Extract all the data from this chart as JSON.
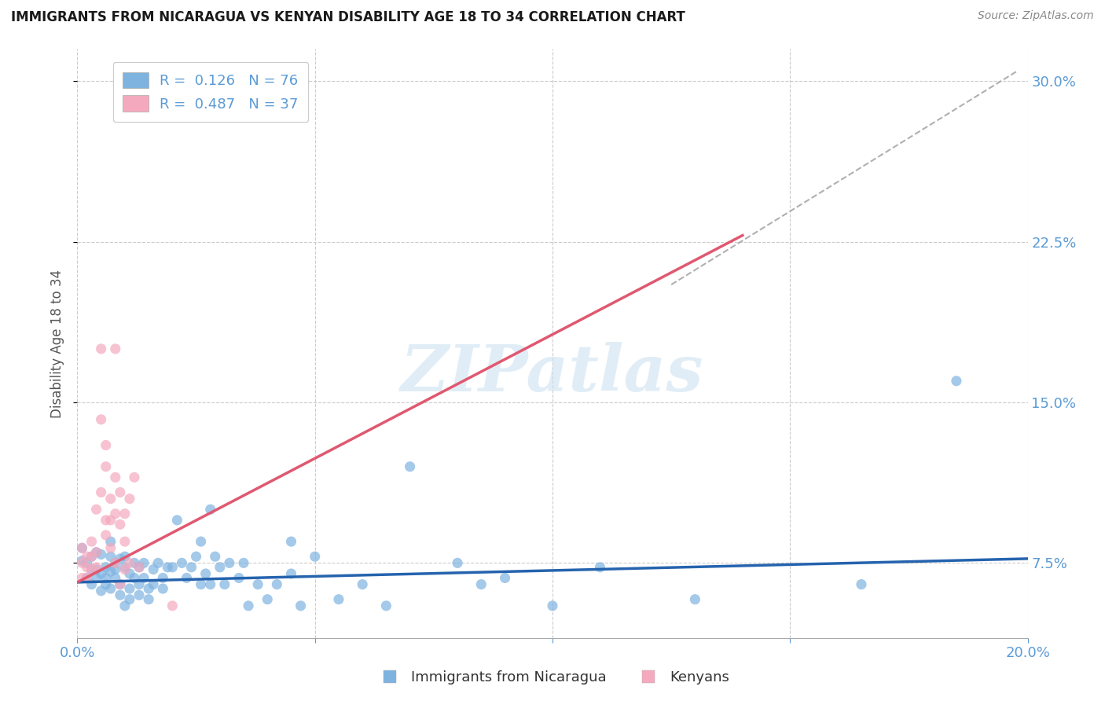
{
  "title": "IMMIGRANTS FROM NICARAGUA VS KENYAN DISABILITY AGE 18 TO 34 CORRELATION CHART",
  "source": "Source: ZipAtlas.com",
  "ylabel": "Disability Age 18 to 34",
  "xlim": [
    0.0,
    0.2
  ],
  "ylim": [
    0.04,
    0.315
  ],
  "yticks": [
    0.075,
    0.15,
    0.225,
    0.3
  ],
  "ytick_labels": [
    "7.5%",
    "15.0%",
    "22.5%",
    "30.0%"
  ],
  "xticks": [
    0.0,
    0.05,
    0.1,
    0.15,
    0.2
  ],
  "xtick_labels": [
    "0.0%",
    "",
    "",
    "",
    "20.0%"
  ],
  "color_blue": "#7eb3e0",
  "color_pink": "#f4a9be",
  "color_blue_line": "#2563ae",
  "color_pink_line": "#e05870",
  "color_dash": "#b0b0b0",
  "watermark_color": "#c8dff0",
  "bg_color": "#ffffff",
  "grid_color": "#cccccc",
  "title_color": "#1a1a1a",
  "axis_label_color": "#555555",
  "tick_color": "#5b9bd5",
  "legend_text_color": "#5b9bd5",
  "blue_scatter": [
    [
      0.001,
      0.082
    ],
    [
      0.001,
      0.076
    ],
    [
      0.002,
      0.075
    ],
    [
      0.002,
      0.068
    ],
    [
      0.003,
      0.078
    ],
    [
      0.003,
      0.065
    ],
    [
      0.003,
      0.072
    ],
    [
      0.004,
      0.072
    ],
    [
      0.004,
      0.08
    ],
    [
      0.004,
      0.068
    ],
    [
      0.005,
      0.07
    ],
    [
      0.005,
      0.079
    ],
    [
      0.005,
      0.062
    ],
    [
      0.006,
      0.065
    ],
    [
      0.006,
      0.073
    ],
    [
      0.006,
      0.068
    ],
    [
      0.007,
      0.078
    ],
    [
      0.007,
      0.063
    ],
    [
      0.007,
      0.085
    ],
    [
      0.007,
      0.071
    ],
    [
      0.008,
      0.075
    ],
    [
      0.008,
      0.068
    ],
    [
      0.008,
      0.072
    ],
    [
      0.009,
      0.06
    ],
    [
      0.009,
      0.077
    ],
    [
      0.009,
      0.065
    ],
    [
      0.01,
      0.073
    ],
    [
      0.01,
      0.078
    ],
    [
      0.01,
      0.055
    ],
    [
      0.011,
      0.07
    ],
    [
      0.011,
      0.063
    ],
    [
      0.011,
      0.058
    ],
    [
      0.012,
      0.075
    ],
    [
      0.012,
      0.068
    ],
    [
      0.013,
      0.073
    ],
    [
      0.013,
      0.065
    ],
    [
      0.013,
      0.06
    ],
    [
      0.014,
      0.075
    ],
    [
      0.014,
      0.068
    ],
    [
      0.015,
      0.063
    ],
    [
      0.015,
      0.058
    ],
    [
      0.016,
      0.072
    ],
    [
      0.016,
      0.065
    ],
    [
      0.017,
      0.075
    ],
    [
      0.018,
      0.068
    ],
    [
      0.018,
      0.063
    ],
    [
      0.019,
      0.073
    ],
    [
      0.02,
      0.073
    ],
    [
      0.021,
      0.095
    ],
    [
      0.022,
      0.075
    ],
    [
      0.023,
      0.068
    ],
    [
      0.024,
      0.073
    ],
    [
      0.025,
      0.078
    ],
    [
      0.026,
      0.065
    ],
    [
      0.026,
      0.085
    ],
    [
      0.027,
      0.07
    ],
    [
      0.028,
      0.065
    ],
    [
      0.028,
      0.1
    ],
    [
      0.029,
      0.078
    ],
    [
      0.03,
      0.073
    ],
    [
      0.031,
      0.065
    ],
    [
      0.032,
      0.075
    ],
    [
      0.034,
      0.068
    ],
    [
      0.035,
      0.075
    ],
    [
      0.036,
      0.055
    ],
    [
      0.038,
      0.065
    ],
    [
      0.04,
      0.058
    ],
    [
      0.042,
      0.065
    ],
    [
      0.045,
      0.07
    ],
    [
      0.045,
      0.085
    ],
    [
      0.047,
      0.055
    ],
    [
      0.05,
      0.078
    ],
    [
      0.055,
      0.058
    ],
    [
      0.06,
      0.065
    ],
    [
      0.065,
      0.055
    ],
    [
      0.07,
      0.12
    ],
    [
      0.08,
      0.075
    ],
    [
      0.085,
      0.065
    ],
    [
      0.09,
      0.068
    ],
    [
      0.1,
      0.055
    ],
    [
      0.11,
      0.073
    ],
    [
      0.13,
      0.058
    ],
    [
      0.165,
      0.065
    ],
    [
      0.185,
      0.16
    ]
  ],
  "pink_scatter": [
    [
      0.001,
      0.082
    ],
    [
      0.001,
      0.075
    ],
    [
      0.001,
      0.068
    ],
    [
      0.002,
      0.078
    ],
    [
      0.002,
      0.068
    ],
    [
      0.002,
      0.073
    ],
    [
      0.003,
      0.085
    ],
    [
      0.003,
      0.078
    ],
    [
      0.003,
      0.072
    ],
    [
      0.004,
      0.1
    ],
    [
      0.004,
      0.08
    ],
    [
      0.004,
      0.073
    ],
    [
      0.005,
      0.142
    ],
    [
      0.005,
      0.175
    ],
    [
      0.005,
      0.108
    ],
    [
      0.006,
      0.12
    ],
    [
      0.006,
      0.095
    ],
    [
      0.006,
      0.088
    ],
    [
      0.006,
      0.13
    ],
    [
      0.007,
      0.105
    ],
    [
      0.007,
      0.095
    ],
    [
      0.007,
      0.082
    ],
    [
      0.008,
      0.175
    ],
    [
      0.008,
      0.115
    ],
    [
      0.008,
      0.098
    ],
    [
      0.008,
      0.075
    ],
    [
      0.009,
      0.108
    ],
    [
      0.009,
      0.093
    ],
    [
      0.009,
      0.065
    ],
    [
      0.01,
      0.098
    ],
    [
      0.01,
      0.085
    ],
    [
      0.01,
      0.072
    ],
    [
      0.011,
      0.105
    ],
    [
      0.011,
      0.075
    ],
    [
      0.012,
      0.115
    ],
    [
      0.013,
      0.073
    ],
    [
      0.02,
      0.055
    ]
  ],
  "blue_line_x": [
    0.0,
    0.2
  ],
  "blue_line_y": [
    0.066,
    0.077
  ],
  "pink_line_x": [
    0.0,
    0.14
  ],
  "pink_line_y": [
    0.066,
    0.228
  ],
  "dash_line_x": [
    0.125,
    0.198
  ],
  "dash_line_y": [
    0.205,
    0.305
  ],
  "watermark": "ZIPatlas"
}
